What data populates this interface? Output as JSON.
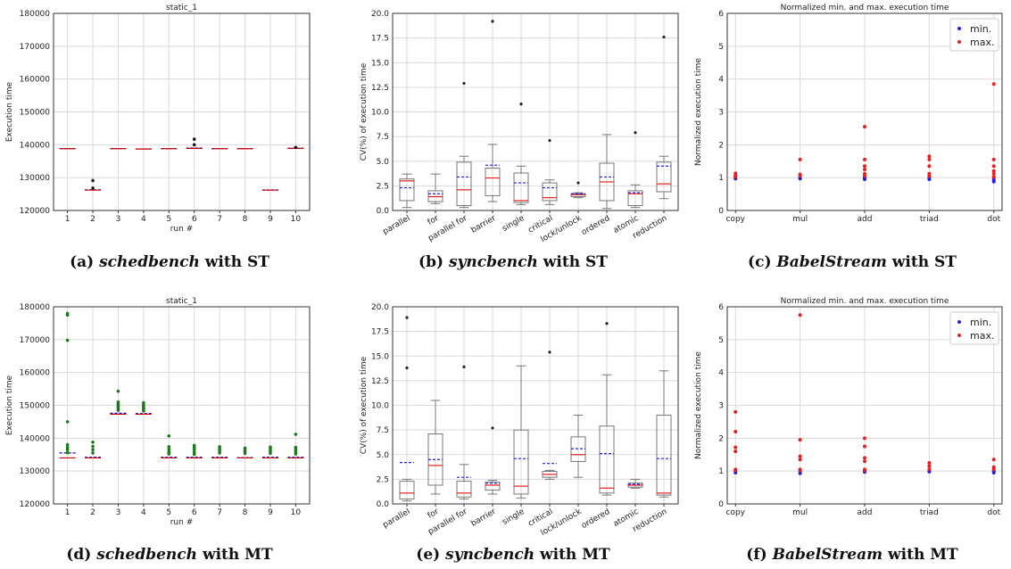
{
  "captions": {
    "a": {
      "label": "(a)",
      "name": "schedbench",
      "suffix": "with ST"
    },
    "b": {
      "label": "(b)",
      "name": "syncbench",
      "suffix": "with ST"
    },
    "c": {
      "label": "(c)",
      "name": "BabelStream",
      "suffix": "with ST"
    },
    "d": {
      "label": "(d)",
      "name": "schedbench",
      "suffix": "with MT"
    },
    "e": {
      "label": "(e)",
      "name": "syncbench",
      "suffix": "with MT"
    },
    "f": {
      "label": "(f)",
      "name": "BabelStream",
      "suffix": "with MT"
    }
  },
  "chart_data": [
    {
      "id": "a",
      "type": "scatter",
      "title": "static_1",
      "xlabel": "run #",
      "ylabel": "Execution time",
      "categories": [
        "1",
        "2",
        "3",
        "4",
        "5",
        "6",
        "7",
        "8",
        "9",
        "10"
      ],
      "ylim": [
        120000,
        180000
      ],
      "yticks": [
        120000,
        130000,
        140000,
        150000,
        160000,
        170000,
        180000
      ],
      "grid": true,
      "series": [
        {
          "role": "median",
          "color": "#cc0000",
          "values": [
            138800,
            126200,
            138800,
            138700,
            138800,
            138900,
            138800,
            138800,
            126200,
            138900
          ]
        },
        {
          "role": "mean",
          "color": "#0000cc",
          "values": [
            138850,
            126300,
            138850,
            138750,
            138850,
            139000,
            138850,
            138850,
            126250,
            138950
          ]
        },
        {
          "role": "outliers",
          "color": "#1a1a1a",
          "points": [
            [
              2,
              129100
            ],
            [
              2,
              126800
            ],
            [
              6,
              141700
            ],
            [
              6,
              140000
            ],
            [
              10,
              139200
            ]
          ]
        }
      ]
    },
    {
      "id": "b",
      "type": "box",
      "ylabel": "CV(%) of execution time",
      "categories": [
        "parallel",
        "for",
        "parallel for",
        "barrier",
        "single",
        "critical",
        "lock/unlock",
        "ordered",
        "atomic",
        "reduction"
      ],
      "ylim": [
        0,
        20
      ],
      "yticks": [
        "0.0",
        "2.5",
        "5.0",
        "7.5",
        "10.0",
        "12.5",
        "15.0",
        "17.5",
        "20.0"
      ],
      "grid": true,
      "boxes": [
        {
          "min": 0.3,
          "q1": 1.0,
          "median": 3.0,
          "q3": 3.2,
          "max": 3.7,
          "mean": 2.3,
          "outliers": []
        },
        {
          "min": 0.7,
          "q1": 0.9,
          "median": 1.4,
          "q3": 2.0,
          "max": 3.7,
          "mean": 1.7,
          "outliers": []
        },
        {
          "min": 0.3,
          "q1": 0.5,
          "median": 2.1,
          "q3": 4.9,
          "max": 5.5,
          "mean": 3.4,
          "outliers": [
            12.9
          ]
        },
        {
          "min": 0.9,
          "q1": 1.5,
          "median": 3.3,
          "q3": 4.3,
          "max": 6.7,
          "mean": 4.6,
          "outliers": [
            19.2
          ]
        },
        {
          "min": 0.6,
          "q1": 0.8,
          "median": 1.0,
          "q3": 3.8,
          "max": 4.5,
          "mean": 2.8,
          "outliers": [
            10.8
          ]
        },
        {
          "min": 0.6,
          "q1": 1.0,
          "median": 1.3,
          "q3": 2.8,
          "max": 3.1,
          "mean": 2.3,
          "outliers": [
            7.1
          ]
        },
        {
          "min": 1.3,
          "q1": 1.4,
          "median": 1.6,
          "q3": 1.7,
          "max": 1.8,
          "mean": 1.7,
          "outliers": [
            2.8
          ]
        },
        {
          "min": 0.2,
          "q1": 1.0,
          "median": 2.9,
          "q3": 4.8,
          "max": 7.7,
          "mean": 3.4,
          "outliers": []
        },
        {
          "min": 0.3,
          "q1": 0.5,
          "median": 1.7,
          "q3": 2.0,
          "max": 2.6,
          "mean": 1.8,
          "outliers": [
            7.9
          ]
        },
        {
          "min": 1.2,
          "q1": 1.9,
          "median": 2.7,
          "q3": 4.9,
          "max": 5.5,
          "mean": 4.5,
          "outliers": [
            17.6
          ]
        }
      ]
    },
    {
      "id": "c",
      "type": "scatter",
      "title": "Normalized min. and max. execution time",
      "ylabel": "Normalized execution time",
      "categories": [
        "copy",
        "mul",
        "add",
        "triad",
        "dot"
      ],
      "ylim": [
        0,
        6
      ],
      "yticks": [
        "0",
        "1",
        "2",
        "3",
        "4",
        "5",
        "6"
      ],
      "grid": true,
      "legend": {
        "placement": "top-right"
      },
      "series": [
        {
          "name": "min.",
          "color": "#1f1fe6",
          "points": [
            [
              0,
              0.97
            ],
            [
              0,
              1.0
            ],
            [
              1,
              0.97
            ],
            [
              1,
              1.0
            ],
            [
              2,
              0.95
            ],
            [
              2,
              1.0
            ],
            [
              3,
              0.95
            ],
            [
              3,
              1.0
            ],
            [
              4,
              0.88
            ],
            [
              4,
              0.93
            ],
            [
              4,
              1.0
            ]
          ]
        },
        {
          "name": "max.",
          "color": "#e62020",
          "points": [
            [
              0,
              1.02
            ],
            [
              0,
              1.07
            ],
            [
              0,
              1.13
            ],
            [
              1,
              1.05
            ],
            [
              1,
              1.1
            ],
            [
              1,
              1.55
            ],
            [
              2,
              1.05
            ],
            [
              2,
              1.12
            ],
            [
              2,
              1.25
            ],
            [
              2,
              1.35
            ],
            [
              2,
              1.55
            ],
            [
              2,
              2.55
            ],
            [
              3,
              1.05
            ],
            [
              3,
              1.12
            ],
            [
              3,
              1.35
            ],
            [
              3,
              1.55
            ],
            [
              3,
              1.65
            ],
            [
              4,
              1.02
            ],
            [
              4,
              1.12
            ],
            [
              4,
              1.2
            ],
            [
              4,
              1.35
            ],
            [
              4,
              1.55
            ],
            [
              4,
              3.85
            ]
          ]
        }
      ]
    },
    {
      "id": "d",
      "type": "scatter",
      "title": "static_1",
      "xlabel": "run #",
      "ylabel": "Execution time",
      "categories": [
        "1",
        "2",
        "3",
        "4",
        "5",
        "6",
        "7",
        "8",
        "9",
        "10"
      ],
      "ylim": [
        120000,
        180000
      ],
      "yticks": [
        120000,
        130000,
        140000,
        150000,
        160000,
        170000,
        180000
      ],
      "grid": true,
      "series": [
        {
          "role": "median",
          "color": "#cc0000",
          "values": [
            134000,
            134000,
            147300,
            147300,
            134000,
            134000,
            134000,
            134000,
            134000,
            134000
          ]
        },
        {
          "role": "mean",
          "color": "#0000cc",
          "values": [
            135500,
            134200,
            147600,
            147500,
            134200,
            134200,
            134200,
            134100,
            134200,
            134200
          ]
        },
        {
          "role": "outliers",
          "color": "#1a7a1a",
          "points": [
            [
              1,
              178000
            ],
            [
              1,
              177500
            ],
            [
              1,
              169800
            ],
            [
              1,
              145000
            ],
            [
              1,
              138000
            ],
            [
              1,
              137200
            ],
            [
              1,
              136500
            ],
            [
              1,
              135600
            ],
            [
              2,
              138800
            ],
            [
              2,
              137500
            ],
            [
              2,
              136500
            ],
            [
              2,
              135500
            ],
            [
              3,
              154300
            ],
            [
              3,
              151000
            ],
            [
              3,
              150500
            ],
            [
              3,
              150000
            ],
            [
              3,
              149500
            ],
            [
              3,
              149000
            ],
            [
              3,
              148500
            ],
            [
              4,
              150800
            ],
            [
              4,
              150300
            ],
            [
              4,
              149800
            ],
            [
              4,
              149300
            ],
            [
              4,
              148800
            ],
            [
              4,
              148300
            ],
            [
              5,
              140700
            ],
            [
              5,
              137400
            ],
            [
              5,
              136600
            ],
            [
              5,
              135800
            ],
            [
              5,
              135200
            ],
            [
              6,
              137800
            ],
            [
              6,
              137200
            ],
            [
              6,
              136500
            ],
            [
              6,
              135700
            ],
            [
              6,
              135100
            ],
            [
              7,
              137400
            ],
            [
              7,
              136800
            ],
            [
              7,
              136200
            ],
            [
              7,
              135500
            ],
            [
              8,
              137000
            ],
            [
              8,
              136500
            ],
            [
              8,
              136000
            ],
            [
              8,
              135400
            ],
            [
              9,
              137300
            ],
            [
              9,
              136700
            ],
            [
              9,
              136000
            ],
            [
              9,
              135400
            ],
            [
              10,
              141200
            ],
            [
              10,
              137200
            ],
            [
              10,
              136500
            ],
            [
              10,
              135800
            ],
            [
              10,
              135200
            ]
          ]
        }
      ]
    },
    {
      "id": "e",
      "type": "box",
      "ylabel": "CV(%) of execution time",
      "categories": [
        "parallel",
        "for",
        "parallel for",
        "barrier",
        "single",
        "critical",
        "lock/unlock",
        "ordered",
        "atomic",
        "reduction"
      ],
      "ylim": [
        0,
        20
      ],
      "yticks": [
        "0.0",
        "2.5",
        "5.0",
        "7.5",
        "10.0",
        "12.5",
        "15.0",
        "17.5",
        "20.0"
      ],
      "grid": true,
      "boxes": [
        {
          "min": 0.3,
          "q1": 0.5,
          "median": 1.1,
          "q3": 2.3,
          "max": 2.5,
          "mean": 4.2,
          "outliers": [
            13.8,
            18.9
          ]
        },
        {
          "min": 1.0,
          "q1": 1.9,
          "median": 3.9,
          "q3": 7.1,
          "max": 10.5,
          "mean": 4.5,
          "outliers": []
        },
        {
          "min": 0.5,
          "q1": 0.7,
          "median": 1.1,
          "q3": 2.3,
          "max": 4.0,
          "mean": 2.7,
          "outliers": [
            13.9
          ]
        },
        {
          "min": 1.0,
          "q1": 1.4,
          "median": 1.9,
          "q3": 2.2,
          "max": 2.4,
          "mean": 2.1,
          "outliers": [
            7.7
          ]
        },
        {
          "min": 0.6,
          "q1": 1.0,
          "median": 1.8,
          "q3": 7.5,
          "max": 14.0,
          "mean": 4.6,
          "outliers": []
        },
        {
          "min": 2.5,
          "q1": 2.7,
          "median": 3.0,
          "q3": 3.3,
          "max": 3.4,
          "mean": 4.1,
          "outliers": [
            15.4
          ]
        },
        {
          "min": 2.7,
          "q1": 4.3,
          "median": 5.0,
          "q3": 6.8,
          "max": 9.0,
          "mean": 5.6,
          "outliers": []
        },
        {
          "min": 0.9,
          "q1": 1.1,
          "median": 1.6,
          "q3": 7.9,
          "max": 13.1,
          "mean": 5.1,
          "outliers": [
            18.3
          ]
        },
        {
          "min": 1.6,
          "q1": 1.7,
          "median": 1.9,
          "q3": 2.1,
          "max": 2.5,
          "mean": 2.0,
          "outliers": []
        },
        {
          "min": 0.7,
          "q1": 0.9,
          "median": 1.1,
          "q3": 9.0,
          "max": 13.5,
          "mean": 4.6,
          "outliers": []
        }
      ]
    },
    {
      "id": "f",
      "type": "scatter",
      "title": "Normalized min. and max. execution time",
      "ylabel": "Normalized execution time",
      "categories": [
        "copy",
        "mul",
        "add",
        "triad",
        "dot"
      ],
      "ylim": [
        0,
        6
      ],
      "yticks": [
        "0",
        "1",
        "2",
        "3",
        "4",
        "5",
        "6"
      ],
      "grid": true,
      "legend": {
        "placement": "top-right"
      },
      "series": [
        {
          "name": "min.",
          "color": "#1f1fe6",
          "points": [
            [
              0,
              0.95
            ],
            [
              0,
              1.0
            ],
            [
              1,
              0.93
            ],
            [
              1,
              1.0
            ],
            [
              2,
              0.97
            ],
            [
              2,
              1.0
            ],
            [
              3,
              0.98
            ],
            [
              3,
              1.0
            ],
            [
              4,
              0.95
            ],
            [
              4,
              1.0
            ]
          ]
        },
        {
          "name": "max.",
          "color": "#e62020",
          "points": [
            [
              0,
              1.02
            ],
            [
              0,
              1.05
            ],
            [
              0,
              1.6
            ],
            [
              0,
              1.72
            ],
            [
              0,
              2.2
            ],
            [
              0,
              2.8
            ],
            [
              1,
              1.02
            ],
            [
              1,
              1.05
            ],
            [
              1,
              1.35
            ],
            [
              1,
              1.45
            ],
            [
              1,
              1.95
            ],
            [
              1,
              5.75
            ],
            [
              2,
              1.02
            ],
            [
              2,
              1.05
            ],
            [
              2,
              1.3
            ],
            [
              2,
              1.4
            ],
            [
              2,
              1.75
            ],
            [
              2,
              2.0
            ],
            [
              3,
              1.05
            ],
            [
              3,
              1.15
            ],
            [
              3,
              1.25
            ],
            [
              4,
              1.05
            ],
            [
              4,
              1.12
            ],
            [
              4,
              1.35
            ]
          ]
        }
      ]
    }
  ]
}
